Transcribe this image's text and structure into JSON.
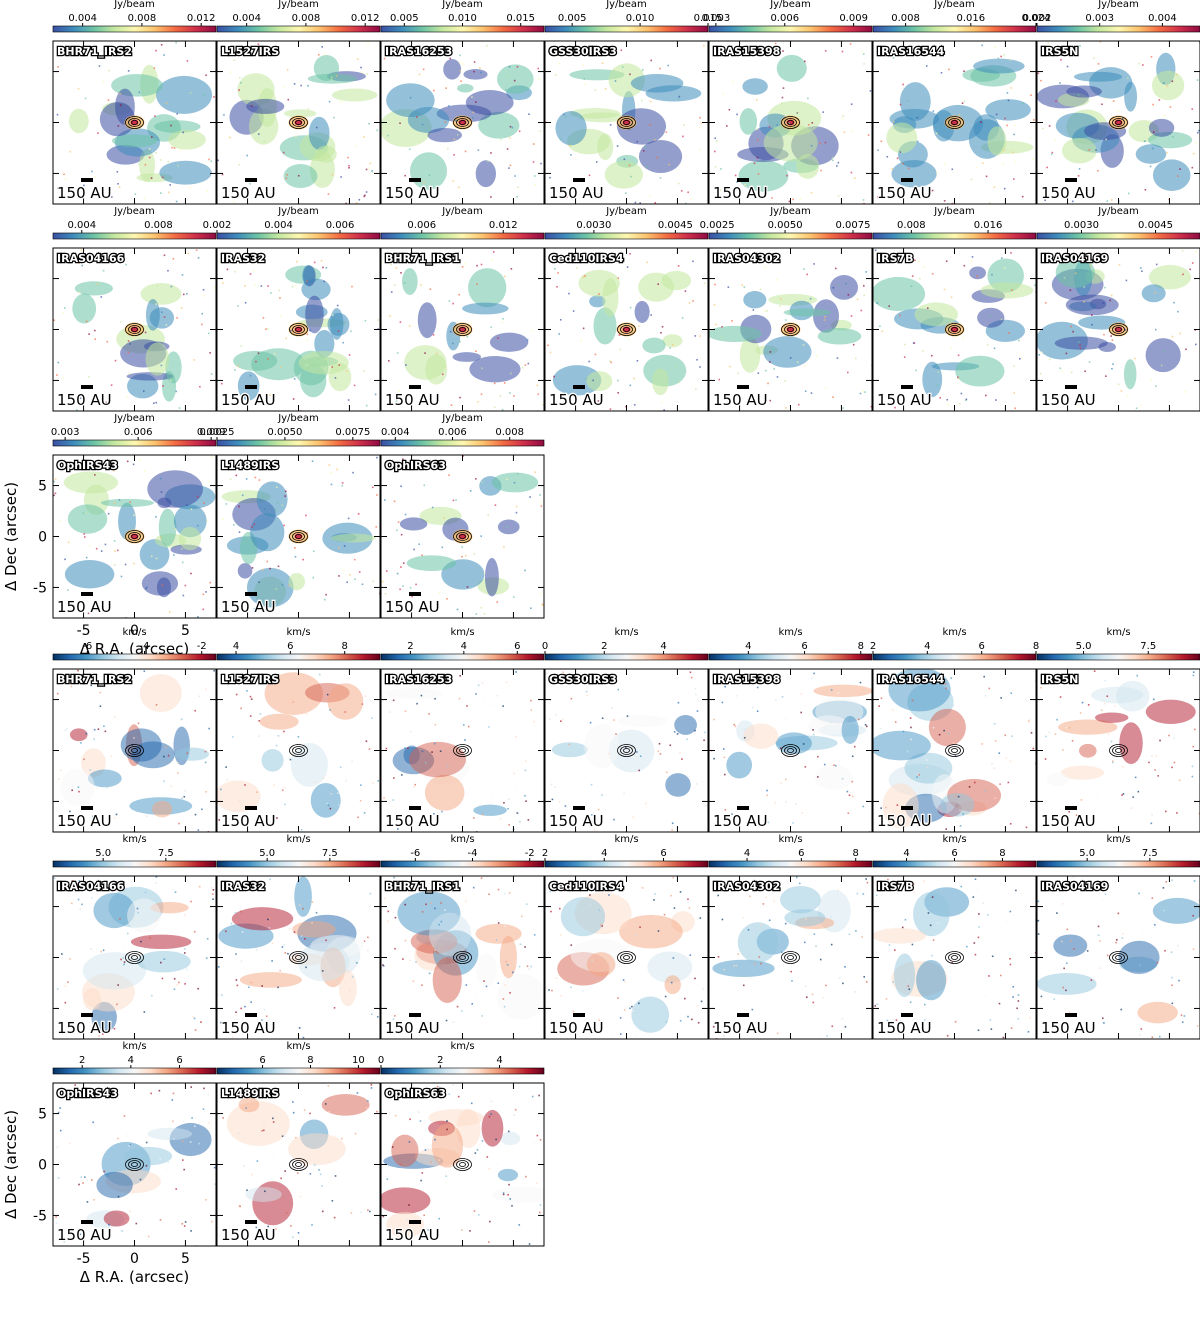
{
  "figure": {
    "scale_bar_label": "150 AU",
    "x_axis_label": "Δ R.A. (arcsec)",
    "y_axis_label": "Δ Dec (arcsec)",
    "axis_ticks": [
      "-5",
      "0",
      "5"
    ],
    "axis_tick_values": [
      -5,
      0,
      5
    ],
    "axis_range": [
      -8,
      8
    ]
  },
  "sections": [
    {
      "name": "intensity",
      "colormap": "Spectral_r",
      "colors": [
        "#3b4fa3",
        "#3e8cbc",
        "#6cc3a5",
        "#c3e79f",
        "#fdf7b1",
        "#fcc26e",
        "#f36b43",
        "#ce2f4b",
        "#8f0b43"
      ],
      "unit": "Jy/beam",
      "rows": [
        [
          {
            "source": "BHR71_IRS2",
            "ticks": [
              "0.004",
              "0.008",
              "0.012"
            ],
            "tick_values": [
              0.004,
              0.008,
              0.012
            ],
            "range": [
              0.002,
              0.013
            ]
          },
          {
            "source": "L1527IRS",
            "ticks": [
              "0.004",
              "0.008",
              "0.012"
            ],
            "tick_values": [
              0.004,
              0.008,
              0.012
            ],
            "range": [
              0.002,
              0.013
            ]
          },
          {
            "source": "IRAS16253",
            "ticks": [
              "0.005",
              "0.010",
              "0.015"
            ],
            "tick_values": [
              0.005,
              0.01,
              0.015
            ],
            "range": [
              0.003,
              0.017
            ]
          },
          {
            "source": "GSS30IRS3",
            "ticks": [
              "0.005",
              "0.010",
              "0.015"
            ],
            "tick_values": [
              0.005,
              0.01,
              0.015
            ],
            "range": [
              0.003,
              0.015
            ]
          },
          {
            "source": "IRAS15398",
            "ticks": [
              "0.003",
              "0.006",
              "0.009"
            ],
            "tick_values": [
              0.003,
              0.006,
              0.009
            ],
            "range": [
              0.0027,
              0.0098
            ]
          },
          {
            "source": "IRAS16544",
            "ticks": [
              "0.008",
              "0.016",
              "0.024"
            ],
            "tick_values": [
              0.008,
              0.016,
              0.024
            ],
            "range": [
              0.004,
              0.024
            ]
          },
          {
            "source": "IRS5N",
            "ticks": [
              "0.002",
              "0.003",
              "0.004"
            ],
            "tick_values": [
              0.002,
              0.003,
              0.004
            ],
            "range": [
              0.002,
              0.0046
            ]
          }
        ],
        [
          {
            "source": "IRAS04166",
            "ticks": [
              "0.004",
              "0.008"
            ],
            "tick_values": [
              0.004,
              0.008
            ],
            "range": [
              0.0025,
              0.011
            ]
          },
          {
            "source": "IRAS32",
            "ticks": [
              "0.002",
              "0.004",
              "0.006"
            ],
            "tick_values": [
              0.002,
              0.004,
              0.006
            ],
            "range": [
              0.002,
              0.0073
            ]
          },
          {
            "source": "BHR71_IRS1",
            "ticks": [
              "0.006",
              "0.012"
            ],
            "tick_values": [
              0.006,
              0.012
            ],
            "range": [
              0.003,
              0.015
            ]
          },
          {
            "source": "Ced110IRS4",
            "ticks": [
              "0.0030",
              "0.0045"
            ],
            "tick_values": [
              0.003,
              0.0045
            ],
            "range": [
              0.0021,
              0.0051
            ]
          },
          {
            "source": "IRAS04302",
            "ticks": [
              "0.0025",
              "0.0050",
              "0.0075"
            ],
            "tick_values": [
              0.0025,
              0.005,
              0.0075
            ],
            "range": [
              0.0022,
              0.0082
            ]
          },
          {
            "source": "IRS7B",
            "ticks": [
              "0.008",
              "0.016"
            ],
            "tick_values": [
              0.008,
              0.016
            ],
            "range": [
              0.004,
              0.021
            ]
          },
          {
            "source": "IRAS04169",
            "ticks": [
              "0.0030",
              "0.0045"
            ],
            "tick_values": [
              0.003,
              0.0045
            ],
            "range": [
              0.0021,
              0.0054
            ]
          }
        ],
        [
          {
            "source": "OphIRS43",
            "ticks": [
              "0.003",
              "0.006",
              "0.009"
            ],
            "tick_values": [
              0.003,
              0.006,
              0.009
            ],
            "range": [
              0.0025,
              0.0092
            ]
          },
          {
            "source": "L1489IRS",
            "ticks": [
              "0.0025",
              "0.0050",
              "0.0075"
            ],
            "tick_values": [
              0.0025,
              0.005,
              0.0075
            ],
            "range": [
              0.0025,
              0.0085
            ]
          },
          {
            "source": "OphIRS63",
            "ticks": [
              "0.004",
              "0.006",
              "0.008"
            ],
            "tick_values": [
              0.004,
              0.006,
              0.008
            ],
            "range": [
              0.0035,
              0.0092
            ]
          }
        ]
      ]
    },
    {
      "name": "velocity",
      "colormap": "RdBu_r",
      "colors": [
        "#053061",
        "#2166ac",
        "#4393c3",
        "#92c5de",
        "#d1e5f0",
        "#f7f7f7",
        "#fddbc7",
        "#f4a582",
        "#d6604d",
        "#b2182b",
        "#67001f"
      ],
      "unit": "km/s",
      "rows": [
        [
          {
            "source": "BHR71_IRS2",
            "ticks": [
              "-6",
              "-4",
              "-2"
            ],
            "tick_values": [
              -6,
              -4,
              -2
            ],
            "range": [
              -7.2,
              -1.5
            ]
          },
          {
            "source": "L1527IRS",
            "ticks": [
              "4",
              "6",
              "8"
            ],
            "tick_values": [
              4,
              6,
              8
            ],
            "range": [
              3.3,
              9.3
            ]
          },
          {
            "source": "IRAS16253",
            "ticks": [
              "2",
              "4",
              "6"
            ],
            "tick_values": [
              2,
              4,
              6
            ],
            "range": [
              0.9,
              7.0
            ]
          },
          {
            "source": "GSS30IRS3",
            "ticks": [
              "0",
              "2",
              "4"
            ],
            "tick_values": [
              0,
              2,
              4
            ],
            "range": [
              0,
              5.5
            ]
          },
          {
            "source": "IRAS15398",
            "ticks": [
              "4",
              "6",
              "8"
            ],
            "tick_values": [
              4,
              6,
              8
            ],
            "range": [
              2.6,
              8.4
            ]
          },
          {
            "source": "IRAS16544",
            "ticks": [
              "2",
              "4",
              "6",
              "8"
            ],
            "tick_values": [
              2,
              4,
              6,
              8
            ],
            "range": [
              2,
              8
            ]
          },
          {
            "source": "IRS5N",
            "ticks": [
              "5.0",
              "7.5"
            ],
            "tick_values": [
              5.0,
              7.5
            ],
            "range": [
              3.2,
              9.5
            ]
          }
        ],
        [
          {
            "source": "IRAS04166",
            "ticks": [
              "5.0",
              "7.5"
            ],
            "tick_values": [
              5.0,
              7.5
            ],
            "range": [
              3.0,
              9.5
            ]
          },
          {
            "source": "IRAS32",
            "ticks": [
              "5.0",
              "7.5"
            ],
            "tick_values": [
              5.0,
              7.5
            ],
            "range": [
              3.0,
              9.5
            ]
          },
          {
            "source": "BHR71_IRS1",
            "ticks": [
              "-6",
              "-4",
              "-2"
            ],
            "tick_values": [
              -6,
              -4,
              -2
            ],
            "range": [
              -7.2,
              -1.5
            ]
          },
          {
            "source": "Ced110IRS4",
            "ticks": [
              "2",
              "4",
              "6"
            ],
            "tick_values": [
              2,
              4,
              6
            ],
            "range": [
              2,
              7.5
            ]
          },
          {
            "source": "IRAS04302",
            "ticks": [
              "4",
              "6",
              "8"
            ],
            "tick_values": [
              4,
              6,
              8
            ],
            "range": [
              2.6,
              8.6
            ]
          },
          {
            "source": "IRS7B",
            "ticks": [
              "4",
              "6",
              "8"
            ],
            "tick_values": [
              4,
              6,
              8
            ],
            "range": [
              2.6,
              9.4
            ]
          },
          {
            "source": "IRAS04169",
            "ticks": [
              "5.0",
              "7.5"
            ],
            "tick_values": [
              5.0,
              7.5
            ],
            "range": [
              3.0,
              9.5
            ]
          }
        ],
        [
          {
            "source": "OphIRS43",
            "ticks": [
              "2",
              "4",
              "6"
            ],
            "tick_values": [
              2,
              4,
              6
            ],
            "range": [
              0.8,
              7.5
            ]
          },
          {
            "source": "L1489IRS",
            "ticks": [
              "6",
              "8",
              "10"
            ],
            "tick_values": [
              6,
              8,
              10
            ],
            "range": [
              4.1,
              10.9
            ]
          },
          {
            "source": "OphIRS63",
            "ticks": [
              "0",
              "2",
              "4"
            ],
            "tick_values": [
              0,
              2,
              4
            ],
            "range": [
              0,
              5.5
            ]
          }
        ]
      ]
    }
  ]
}
